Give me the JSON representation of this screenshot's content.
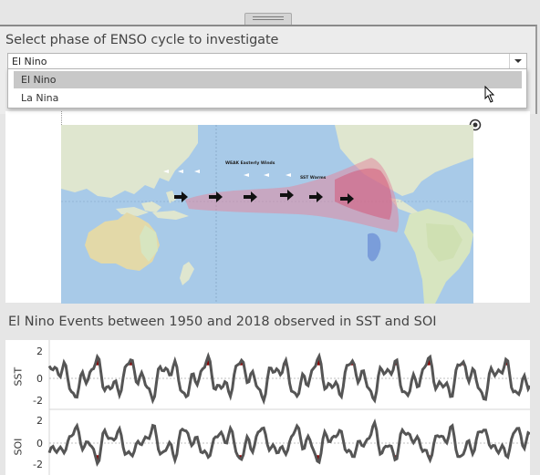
{
  "panel": {
    "title": "Select phase of ENSO cycle to investigate",
    "selected_value": "El Nino",
    "options": [
      "El Nino",
      "La Nina"
    ]
  },
  "map": {
    "labels": {
      "wind": "WEAK Easterly Winds",
      "sst": "SST Warms"
    }
  },
  "chart": {
    "title": "El Nino Events between 1950 and 2018 observed in SST and SOI",
    "colors": {
      "line": "#555555",
      "event_fill": "#8b0000",
      "zero_line": "#b0b0b0"
    }
  },
  "chart_data": [
    {
      "type": "line",
      "ylabel": "SST",
      "ylim": [
        -2.5,
        2.6
      ],
      "yticks": [
        "2",
        "0",
        "-2"
      ],
      "note": "El Nino events (SST above threshold) shaded dark red"
    },
    {
      "type": "line",
      "ylabel": "SOI",
      "ylim": [
        -2.5,
        2.6
      ],
      "yticks": [
        "2",
        "0",
        "-2"
      ],
      "note": "El Nino events (SOI below threshold) shaded dark red"
    }
  ]
}
